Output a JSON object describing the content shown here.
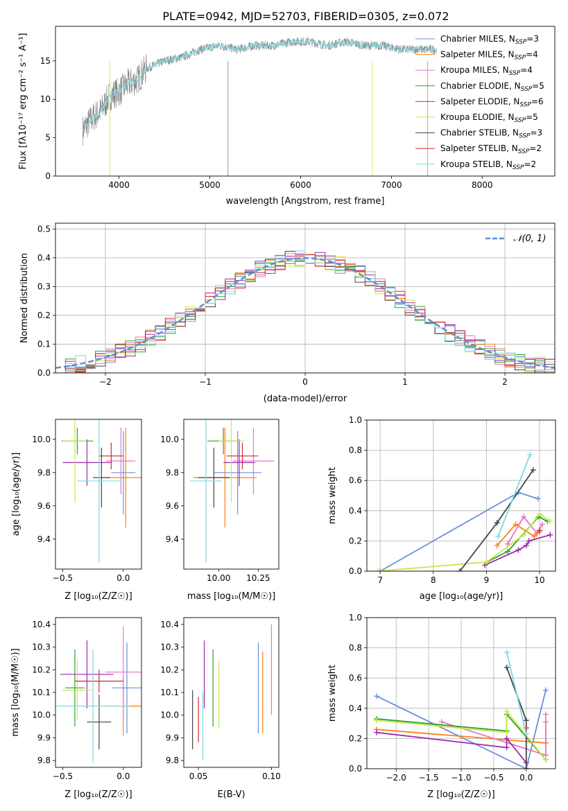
{
  "figure_title": "PLATE=0942, MJD=52703, FIBERID=0305, z=0.072",
  "colors": {
    "Chabrier MILES": "#6a8fdc",
    "Salpeter MILES": "#ff7f0e",
    "Kroupa MILES": "#e377c2",
    "Chabrier ELODIE": "#2ca02c",
    "Salpeter ELODIE": "#9c27b0",
    "Kroupa ELODIE": "#c6e84a",
    "Chabrier STELIB": "#444444",
    "Salpeter STELIB": "#d62728",
    "Kroupa STELIB": "#80d8e0",
    "data": "#808080",
    "normal": "#5b8fd9"
  },
  "chart_data": [
    {
      "type": "line",
      "title": "PLATE=0942, MJD=52703, FIBERID=0305, z=0.072",
      "xlabel": "wavelength [Angstrom, rest frame]",
      "ylabel": "Flux [f_λ 10^-17 erg cm^-2 s^-1 A^-1]",
      "xlim": [
        3300,
        8800
      ],
      "ylim": [
        0,
        19.5
      ],
      "xticks": [
        "4000",
        "5000",
        "6000",
        "7000",
        "8000"
      ],
      "yticks": [
        "0",
        "5",
        "10",
        "15"
      ],
      "x": [
        3600,
        3700,
        3800,
        3900,
        4000,
        4100,
        4200,
        4300,
        4500,
        4700,
        4900,
        5100,
        5300,
        5500,
        5700,
        5900,
        6100,
        6300,
        6500,
        6700,
        6900,
        7100,
        7300,
        7500
      ],
      "y": [
        6.0,
        7.5,
        8.5,
        10.5,
        11.0,
        12.0,
        12.5,
        14.0,
        15.0,
        15.5,
        16.5,
        17.0,
        16.5,
        17.0,
        17.0,
        17.5,
        17.5,
        17.0,
        17.5,
        17.0,
        17.0,
        16.5,
        16.5,
        16.5
      ],
      "legend": [
        "Chabrier MILES, N_SSP=3",
        "Salpeter MILES, N_SSP=4",
        "Kroupa MILES, N_SSP=4",
        "Chabrier ELODIE, N_SSP=5",
        "Salpeter ELODIE, N_SSP=6",
        "Kroupa ELODIE, N_SSP=5",
        "Chabrier STELIB, N_SSP=3",
        "Salpeter STELIB, N_SSP=2",
        "Kroupa STELIB, N_SSP=2"
      ],
      "legend_location": "right"
    },
    {
      "type": "histogram",
      "xlabel": "(data-model)/error",
      "ylabel": "Normed distribution",
      "xlim": [
        -2.5,
        2.5
      ],
      "ylim": [
        0,
        0.52
      ],
      "xticks": [
        "−2",
        "−1",
        "0",
        "1",
        "2"
      ],
      "yticks": [
        "0.0",
        "0.1",
        "0.2",
        "0.3",
        "0.4",
        "0.5"
      ],
      "bin_width": 0.1,
      "legend": [
        "N(0,1)"
      ],
      "legend_location": "upper right",
      "grid": true
    },
    {
      "type": "errorbar",
      "xlabel": "Z [log10(Z/Z⊙)]",
      "ylabel": "age  [log10(age/yr)]",
      "xlim": [
        -0.56,
        0.15
      ],
      "ylim": [
        9.22,
        10.12
      ],
      "xticks": [
        "−0.5",
        "0.0"
      ],
      "yticks": [
        "9.4",
        "9.6",
        "9.8",
        "10.0"
      ],
      "points": [
        {
          "series": "Chabrier MILES",
          "x": 0.0,
          "y": 9.8,
          "xerr": 0.1,
          "yerr": 0.25
        },
        {
          "series": "Salpeter MILES",
          "x": 0.02,
          "y": 9.77,
          "xerr": 0.16,
          "yerr": 0.3
        },
        {
          "series": "Kroupa MILES",
          "x": -0.02,
          "y": 9.87,
          "xerr": 0.12,
          "yerr": 0.2
        },
        {
          "series": "Chabrier ELODIE",
          "x": -0.38,
          "y": 9.99,
          "xerr": 0.13,
          "yerr": 0.08
        },
        {
          "series": "Salpeter ELODIE",
          "x": -0.3,
          "y": 9.86,
          "xerr": 0.2,
          "yerr": 0.14
        },
        {
          "series": "Kroupa ELODIE",
          "x": -0.4,
          "y": 9.99,
          "xerr": 0.1,
          "yerr": 0.37
        },
        {
          "series": "Chabrier STELIB",
          "x": -0.18,
          "y": 9.77,
          "xerr": 0.07,
          "yerr": 0.18
        },
        {
          "series": "Salpeter STELIB",
          "x": -0.1,
          "y": 9.9,
          "xerr": 0.1,
          "yerr": 0.08
        },
        {
          "series": "Kroupa STELIB",
          "x": -0.2,
          "y": 9.75,
          "xerr": 0.18,
          "yerr": 0.49
        }
      ]
    },
    {
      "type": "errorbar",
      "xlabel": "mass [log10(M/M⊙)]",
      "ylabel": "",
      "xlim": [
        9.78,
        10.38
      ],
      "ylim": [
        9.22,
        10.12
      ],
      "xticks": [
        "10.00",
        "10.25"
      ],
      "yticks": [
        "9.4",
        "9.6",
        "9.8",
        "10.0"
      ],
      "points": [
        {
          "series": "Chabrier MILES",
          "x": 10.12,
          "y": 9.8,
          "xerr": 0.15,
          "yerr": 0.25
        },
        {
          "series": "Salpeter MILES",
          "x": 10.04,
          "y": 9.77,
          "xerr": 0.2,
          "yerr": 0.3
        },
        {
          "series": "Kroupa MILES",
          "x": 10.22,
          "y": 9.87,
          "xerr": 0.13,
          "yerr": 0.2
        },
        {
          "series": "Chabrier ELODIE",
          "x": 10.03,
          "y": 9.99,
          "xerr": 0.1,
          "yerr": 0.08
        },
        {
          "series": "Salpeter ELODIE",
          "x": 10.13,
          "y": 9.86,
          "xerr": 0.1,
          "yerr": 0.14
        },
        {
          "series": "Kroupa ELODIE",
          "x": 10.08,
          "y": 9.99,
          "xerr": 0.08,
          "yerr": 0.37
        },
        {
          "series": "Chabrier STELIB",
          "x": 9.97,
          "y": 9.77,
          "xerr": 0.1,
          "yerr": 0.18
        },
        {
          "series": "Salpeter STELIB",
          "x": 10.15,
          "y": 9.9,
          "xerr": 0.1,
          "yerr": 0.08
        },
        {
          "series": "Kroupa STELIB",
          "x": 9.92,
          "y": 9.75,
          "xerr": 0.1,
          "yerr": 0.49
        }
      ]
    },
    {
      "type": "line",
      "xlabel": "age  [log10(age/yr)]",
      "ylabel": "mass weight",
      "xlim": [
        6.75,
        10.3
      ],
      "ylim": [
        0,
        1.0
      ],
      "xticks": [
        "7",
        "8",
        "9",
        "10"
      ],
      "yticks": [
        "0.0",
        "0.2",
        "0.4",
        "0.6",
        "0.8",
        "1.0"
      ],
      "grid": true,
      "series": [
        {
          "name": "Chabrier MILES",
          "x": [
            7.0,
            9.6,
            9.97
          ],
          "y": [
            0.0,
            0.52,
            0.48
          ]
        },
        {
          "name": "Salpeter MILES",
          "x": [
            9.2,
            9.55,
            9.9,
            10.0
          ],
          "y": [
            0.17,
            0.31,
            0.23,
            0.26
          ]
        },
        {
          "name": "Kroupa MILES",
          "x": [
            9.4,
            9.7,
            9.95,
            10.05
          ],
          "y": [
            0.18,
            0.36,
            0.25,
            0.31
          ]
        },
        {
          "name": "Chabrier ELODIE",
          "x": [
            9.0,
            9.4,
            9.98,
            10.15
          ],
          "y": [
            0.06,
            0.13,
            0.36,
            0.33
          ]
        },
        {
          "name": "Salpeter ELODIE",
          "x": [
            8.97,
            9.6,
            9.75,
            9.8,
            10.2
          ],
          "y": [
            0.04,
            0.14,
            0.17,
            0.2,
            0.24
          ]
        },
        {
          "name": "Kroupa ELODIE",
          "x": [
            6.95,
            9.0,
            9.7,
            10.0,
            10.2
          ],
          "y": [
            0.0,
            0.06,
            0.24,
            0.38,
            0.33
          ]
        },
        {
          "name": "Chabrier STELIB",
          "x": [
            8.5,
            9.2,
            9.88
          ],
          "y": [
            0.0,
            0.32,
            0.67
          ]
        },
        {
          "name": "Salpeter STELIB",
          "x": [
            10.0
          ],
          "y": [
            0.27
          ]
        },
        {
          "name": "Kroupa STELIB",
          "x": [
            9.22,
            9.82
          ],
          "y": [
            0.23,
            0.77
          ]
        }
      ]
    },
    {
      "type": "errorbar",
      "xlabel": "Z [log10(Z/Z⊙)]",
      "ylabel": "mass [log10(M/M⊙)]",
      "xlim": [
        -0.56,
        0.15
      ],
      "ylim": [
        9.77,
        10.43
      ],
      "xticks": [
        "−0.5",
        "0.0"
      ],
      "yticks": [
        "9.8",
        "9.9",
        "10.0",
        "10.1",
        "10.2",
        "10.3",
        "10.4"
      ],
      "points": [
        {
          "series": "Chabrier MILES",
          "x": 0.03,
          "y": 10.12,
          "xerr": 0.12,
          "yerr": 0.2
        },
        {
          "series": "Salpeter MILES",
          "x": 0.0,
          "y": 10.04,
          "xerr": 0.16,
          "yerr": 0.13
        },
        {
          "series": "Kroupa MILES",
          "x": 0.0,
          "y": 10.19,
          "xerr": 0.15,
          "yerr": 0.2
        },
        {
          "series": "Chabrier ELODIE",
          "x": -0.4,
          "y": 10.12,
          "xerr": 0.08,
          "yerr": 0.17
        },
        {
          "series": "Salpeter ELODIE",
          "x": -0.3,
          "y": 10.18,
          "xerr": 0.22,
          "yerr": 0.15
        },
        {
          "series": "Kroupa ELODIE",
          "x": -0.38,
          "y": 10.11,
          "xerr": 0.12,
          "yerr": 0.13
        },
        {
          "series": "Chabrier STELIB",
          "x": -0.2,
          "y": 9.97,
          "xerr": 0.1,
          "yerr": 0.12
        },
        {
          "series": "Salpeter STELIB",
          "x": -0.2,
          "y": 10.15,
          "xerr": 0.2,
          "yerr": 0.05
        },
        {
          "series": "Kroupa STELIB",
          "x": -0.25,
          "y": 10.04,
          "xerr": 0.3,
          "yerr": 0.25
        }
      ]
    },
    {
      "type": "errorbar",
      "xlabel": "E(B-V)",
      "ylabel": "",
      "xlim": [
        0.04,
        0.105
      ],
      "ylim": [
        9.77,
        10.43
      ],
      "xticks": [
        "0.05",
        "0.10"
      ],
      "yticks": [
        "9.8",
        "9.9",
        "10.0",
        "10.1",
        "10.2",
        "10.3",
        "10.4"
      ],
      "points": [
        {
          "series": "Chabrier MILES",
          "x": 0.091,
          "y": 10.12,
          "yerr": 0.2
        },
        {
          "series": "Salpeter MILES",
          "x": 0.094,
          "y": 10.1,
          "yerr": 0.18
        },
        {
          "series": "Kroupa MILES",
          "x": 0.1,
          "y": 10.2,
          "yerr": 0.2
        },
        {
          "series": "Chabrier ELODIE",
          "x": 0.06,
          "y": 10.12,
          "yerr": 0.17
        },
        {
          "series": "Salpeter ELODIE",
          "x": 0.054,
          "y": 10.18,
          "yerr": 0.15
        },
        {
          "series": "Kroupa ELODIE",
          "x": 0.064,
          "y": 10.09,
          "yerr": 0.15
        },
        {
          "series": "Chabrier STELIB",
          "x": 0.046,
          "y": 9.98,
          "yerr": 0.13
        },
        {
          "series": "Salpeter STELIB",
          "x": 0.05,
          "y": 9.98,
          "yerr": 0.1
        },
        {
          "series": "Kroupa STELIB",
          "x": 0.053,
          "y": 9.95,
          "yerr": 0.15
        }
      ]
    },
    {
      "type": "line",
      "xlabel": "Z [log10(Z/Z⊙)]",
      "ylabel": "mass weight",
      "xlim": [
        -2.45,
        0.45
      ],
      "ylim": [
        0,
        1.0
      ],
      "xticks": [
        "−2.0",
        "−1.5",
        "−1.0",
        "−0.5",
        "0.0"
      ],
      "yticks": [
        "0.0",
        "0.2",
        "0.4",
        "0.6",
        "0.8",
        "1.0"
      ],
      "grid": true,
      "series": [
        {
          "name": "Chabrier MILES",
          "x": [
            -2.3,
            0.0,
            0.3
          ],
          "y": [
            0.48,
            0.0,
            0.52
          ]
        },
        {
          "name": "Salpeter MILES",
          "x": [
            -2.3,
            0.3,
            0.3
          ],
          "y": [
            0.26,
            0.17,
            0.31
          ]
        },
        {
          "name": "Kroupa MILES",
          "x": [
            -1.3,
            0.3,
            0.3
          ],
          "y": [
            0.31,
            0.09,
            0.36
          ]
        },
        {
          "name": "Chabrier ELODIE",
          "x": [
            -2.3,
            -0.3,
            -0.3,
            0.3
          ],
          "y": [
            0.33,
            0.25,
            0.36,
            0.06
          ]
        },
        {
          "name": "Salpeter ELODIE",
          "x": [
            -2.3,
            -0.3,
            -0.3,
            0.0
          ],
          "y": [
            0.24,
            0.14,
            0.2,
            0.04
          ]
        },
        {
          "name": "Kroupa ELODIE",
          "x": [
            -2.3,
            -0.3,
            -0.3,
            0.3
          ],
          "y": [
            0.32,
            0.24,
            0.38,
            0.06
          ]
        },
        {
          "name": "Chabrier STELIB",
          "x": [
            0.0,
            0.0,
            -0.3
          ],
          "y": [
            0.0,
            0.32,
            0.67
          ]
        },
        {
          "name": "Salpeter STELIB",
          "x": [
            0.0
          ],
          "y": [
            0.27
          ]
        },
        {
          "name": "Kroupa STELIB",
          "x": [
            0.0,
            -0.3
          ],
          "y": [
            0.23,
            0.77
          ]
        }
      ]
    }
  ]
}
